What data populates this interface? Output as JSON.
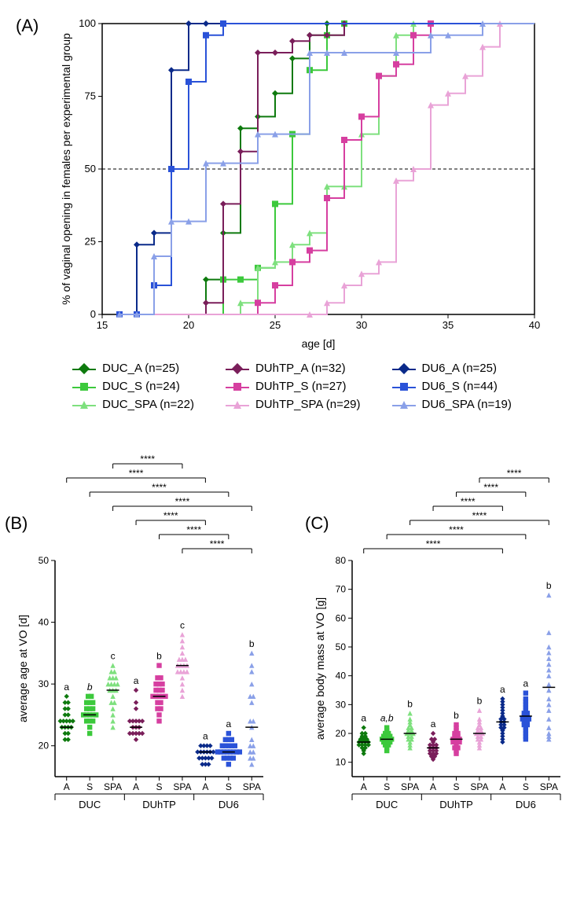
{
  "panelA": {
    "label": "(A)",
    "type": "survival-step-line",
    "xlabel": "age [d]",
    "ylabel": "% of vaginal opening in females per experimental group",
    "xlim": [
      15,
      40
    ],
    "ylim": [
      0,
      100
    ],
    "xtick_step": 5,
    "ytick_step": 25,
    "label_fontsize": 14,
    "tick_fontsize": 13,
    "background_color": "#ffffff",
    "ref_line": {
      "y": 50,
      "dash": "4,3",
      "color": "#000000"
    },
    "series": [
      {
        "key": "DUC_A",
        "label": "DUC_A (n=25)",
        "color": "#0e7a0e",
        "marker": "diamond",
        "x": [
          16,
          21,
          22,
          23,
          24,
          25,
          26,
          27,
          28
        ],
        "y": [
          0,
          12,
          28,
          64,
          68,
          76,
          88,
          96,
          100
        ]
      },
      {
        "key": "DUC_S",
        "label": "DUC_S (n=24)",
        "color": "#3cc93c",
        "marker": "square",
        "x": [
          16,
          22,
          23,
          24,
          25,
          26,
          27,
          28,
          29
        ],
        "y": [
          0,
          12,
          12,
          16,
          38,
          62,
          84,
          96,
          100
        ]
      },
      {
        "key": "DUC_SPA",
        "label": "DUC_SPA (n=22)",
        "color": "#7ee07e",
        "marker": "triangle",
        "x": [
          16,
          23,
          24,
          25,
          26,
          27,
          28,
          29,
          30,
          31,
          32,
          33
        ],
        "y": [
          0,
          4,
          16,
          18,
          24,
          28,
          44,
          44,
          62,
          82,
          96,
          100
        ]
      },
      {
        "key": "DUhTP_A",
        "label": "DUhTP_A (n=32)",
        "color": "#7a1e5a",
        "marker": "diamond",
        "x": [
          16,
          21,
          22,
          23,
          24,
          25,
          26,
          27,
          28,
          29
        ],
        "y": [
          0,
          4,
          38,
          56,
          90,
          90,
          94,
          96,
          96,
          100
        ]
      },
      {
        "key": "DUhTP_S",
        "label": "DUhTP_S (n=27)",
        "color": "#d63fa0",
        "marker": "square",
        "x": [
          16,
          24,
          25,
          26,
          27,
          28,
          29,
          30,
          31,
          32,
          33,
          34
        ],
        "y": [
          0,
          4,
          10,
          18,
          22,
          40,
          60,
          68,
          82,
          86,
          96,
          100
        ]
      },
      {
        "key": "DUhTP_SPA",
        "label": "DUhTP_SPA (n=29)",
        "color": "#e9a3d7",
        "marker": "triangle",
        "x": [
          16,
          27,
          28,
          29,
          30,
          31,
          32,
          33,
          34,
          35,
          36,
          37,
          38
        ],
        "y": [
          0,
          0,
          4,
          10,
          14,
          18,
          46,
          50,
          72,
          76,
          82,
          92,
          100
        ]
      },
      {
        "key": "DU6_A",
        "label": "DU6_A (n=25)",
        "color": "#0a2a8a",
        "marker": "diamond",
        "x": [
          16,
          17,
          18,
          19,
          20,
          21
        ],
        "y": [
          0,
          24,
          28,
          84,
          100,
          100
        ]
      },
      {
        "key": "DU6_S",
        "label": "DU6_S (n=44)",
        "color": "#2a52d8",
        "marker": "square",
        "x": [
          16,
          17,
          18,
          19,
          20,
          21,
          22
        ],
        "y": [
          0,
          0,
          10,
          50,
          80,
          96,
          100
        ]
      },
      {
        "key": "DU6_SPA",
        "label": "DU6_SPA (n=19)",
        "color": "#8aa0e8",
        "marker": "triangle",
        "x": [
          16,
          17,
          18,
          19,
          20,
          21,
          22,
          24,
          25,
          27,
          28,
          29,
          32,
          34,
          35,
          37
        ],
        "y": [
          0,
          0,
          20,
          32,
          32,
          52,
          52,
          62,
          62,
          90,
          90,
          90,
          90,
          96,
          96,
          100
        ]
      }
    ]
  },
  "legend_layout": {
    "columns": 3,
    "rows": 3,
    "order": [
      "DUC_A",
      "DUhTP_A",
      "DU6_A",
      "DUC_S",
      "DUhTP_S",
      "DU6_S",
      "DUC_SPA",
      "DUhTP_SPA",
      "DU6_SPA"
    ]
  },
  "panelB": {
    "label": "(B)",
    "type": "scatter-dot",
    "ylabel": "average age at VO [d]",
    "ylim": [
      15,
      50
    ],
    "ytick_step": 10,
    "label_fontsize": 14,
    "tick_fontsize": 12,
    "groups": [
      "DUC",
      "DUhTP",
      "DU6"
    ],
    "subgroups": [
      "A",
      "S",
      "SPA"
    ],
    "colors": {
      "DUC_A": "#0e7a0e",
      "DUC_S": "#3cc93c",
      "DUC_SPA": "#7ee07e",
      "DUhTP_A": "#7a1e5a",
      "DUhTP_S": "#d63fa0",
      "DUhTP_SPA": "#e9a3d7",
      "DU6_A": "#0a2a8a",
      "DU6_S": "#2a52d8",
      "DU6_SPA": "#8aa0e8"
    },
    "markers": {
      "A": "diamond",
      "S": "square",
      "SPA": "triangle"
    },
    "letters": {
      "DUC_A": "a",
      "DUC_S": "b",
      "DUC_SPA": "c",
      "DUhTP_A": "a",
      "DUhTP_S": "b",
      "DUhTP_SPA": "c",
      "DU6_A": "a",
      "DU6_S": "a",
      "DU6_SPA": "b"
    },
    "means": {
      "DUC_A": 23,
      "DUC_S": 25,
      "DUC_SPA": 29,
      "DUhTP_A": 23,
      "DUhTP_S": 28,
      "DUhTP_SPA": 33,
      "DU6_A": 19,
      "DU6_S": 19,
      "DU6_SPA": 23
    },
    "points": {
      "DUC_A": [
        21,
        21,
        22,
        22,
        23,
        23,
        23,
        23,
        24,
        24,
        24,
        24,
        24,
        25,
        25,
        26,
        26,
        27,
        27,
        28
      ],
      "DUC_S": [
        22,
        23,
        24,
        24,
        24,
        25,
        25,
        25,
        25,
        25,
        26,
        26,
        26,
        27,
        27,
        27,
        28,
        28
      ],
      "DUC_SPA": [
        23,
        24,
        25,
        26,
        27,
        27,
        28,
        29,
        29,
        29,
        30,
        30,
        30,
        30,
        31,
        31,
        31,
        32,
        32,
        33
      ],
      "DUhTP_A": [
        21,
        22,
        22,
        22,
        22,
        22,
        23,
        23,
        23,
        24,
        24,
        24,
        24,
        24,
        26,
        27,
        29
      ],
      "DUhTP_S": [
        24,
        25,
        26,
        26,
        27,
        27,
        28,
        28,
        28,
        28,
        28,
        29,
        29,
        29,
        30,
        30,
        30,
        31,
        31,
        33
      ],
      "DUhTP_SPA": [
        28,
        29,
        30,
        31,
        32,
        32,
        32,
        32,
        33,
        33,
        33,
        33,
        34,
        34,
        34,
        35,
        36,
        37,
        38
      ],
      "DU6_A": [
        17,
        17,
        17,
        18,
        18,
        18,
        18,
        18,
        19,
        19,
        19,
        19,
        19,
        19,
        20,
        20,
        20,
        20
      ],
      "DU6_S": [
        17,
        18,
        18,
        18,
        18,
        19,
        19,
        19,
        19,
        19,
        19,
        19,
        19,
        20,
        20,
        20,
        20,
        20,
        21,
        21,
        21,
        22
      ],
      "DU6_SPA": [
        17,
        18,
        18,
        19,
        19,
        20,
        20,
        21,
        23,
        24,
        24,
        27,
        28,
        28,
        30,
        32,
        33,
        35
      ]
    },
    "sig_bars": [
      {
        "from": "DUC_SPA",
        "to": "DUhTP_SPA",
        "label": "****"
      },
      {
        "from": "DUC_A",
        "to": "DU6_A",
        "label": "****"
      },
      {
        "from": "DUC_S",
        "to": "DU6_S",
        "label": "****"
      },
      {
        "from": "DUC_SPA",
        "to": "DU6_SPA",
        "label": "****"
      },
      {
        "from": "DUhTP_A",
        "to": "DU6_A",
        "label": "****"
      },
      {
        "from": "DUhTP_S",
        "to": "DU6_S",
        "label": "****"
      },
      {
        "from": "DUhTP_SPA",
        "to": "DU6_SPA",
        "label": "****"
      }
    ]
  },
  "panelC": {
    "label": "(C)",
    "type": "scatter-dot",
    "ylabel": "average body mass at VO [g]",
    "ylim": [
      5,
      80
    ],
    "ytick_step": 10,
    "label_fontsize": 14,
    "tick_fontsize": 12,
    "groups": [
      "DUC",
      "DUhTP",
      "DU6"
    ],
    "subgroups": [
      "A",
      "S",
      "SPA"
    ],
    "colors": {
      "DUC_A": "#0e7a0e",
      "DUC_S": "#3cc93c",
      "DUC_SPA": "#7ee07e",
      "DUhTP_A": "#7a1e5a",
      "DUhTP_S": "#d63fa0",
      "DUhTP_SPA": "#e9a3d7",
      "DU6_A": "#0a2a8a",
      "DU6_S": "#2a52d8",
      "DU6_SPA": "#8aa0e8"
    },
    "markers": {
      "A": "diamond",
      "S": "square",
      "SPA": "triangle"
    },
    "letters": {
      "DUC_A": "a",
      "DUC_S": "a,b",
      "DUC_SPA": "b",
      "DUhTP_A": "a",
      "DUhTP_S": "b",
      "DUhTP_SPA": "b",
      "DU6_A": "a",
      "DU6_S": "a",
      "DU6_SPA": "b"
    },
    "means": {
      "DUC_A": 17,
      "DUC_S": 18,
      "DUC_SPA": 20,
      "DUhTP_A": 15,
      "DUhTP_S": 18,
      "DUhTP_SPA": 20,
      "DU6_A": 24,
      "DU6_S": 26,
      "DU6_SPA": 36
    },
    "points": {
      "DUC_A": [
        13,
        14,
        15,
        15,
        16,
        16,
        16,
        16,
        17,
        17,
        17,
        17,
        18,
        18,
        18,
        19,
        19,
        20,
        20,
        22
      ],
      "DUC_S": [
        14,
        15,
        16,
        16,
        17,
        17,
        17,
        18,
        18,
        18,
        18,
        19,
        19,
        19,
        20,
        20,
        21,
        22
      ],
      "DUC_SPA": [
        15,
        16,
        17,
        18,
        18,
        19,
        19,
        20,
        20,
        20,
        21,
        21,
        22,
        22,
        23,
        24,
        25,
        27
      ],
      "DUhTP_A": [
        11,
        12,
        12,
        13,
        13,
        13,
        14,
        14,
        14,
        15,
        15,
        15,
        16,
        16,
        16,
        17,
        18,
        18,
        20
      ],
      "DUhTP_S": [
        13,
        14,
        15,
        15,
        16,
        17,
        17,
        17,
        18,
        18,
        18,
        19,
        19,
        20,
        20,
        21,
        22,
        23
      ],
      "DUhTP_SPA": [
        15,
        16,
        17,
        18,
        18,
        19,
        19,
        20,
        20,
        20,
        21,
        21,
        22,
        22,
        23,
        24,
        25,
        28
      ],
      "DU6_A": [
        17,
        18,
        19,
        20,
        21,
        22,
        22,
        23,
        23,
        24,
        24,
        25,
        25,
        26,
        27,
        28,
        29,
        30,
        31,
        32
      ],
      "DU6_S": [
        18,
        19,
        20,
        21,
        22,
        23,
        23,
        24,
        24,
        25,
        25,
        25,
        26,
        26,
        27,
        27,
        28,
        29,
        30,
        31,
        32,
        34
      ],
      "DU6_SPA": [
        18,
        19,
        20,
        22,
        25,
        28,
        30,
        32,
        35,
        37,
        40,
        42,
        44,
        46,
        48,
        50,
        55,
        68
      ]
    },
    "sig_bars": [
      {
        "from": "DUhTP_SPA",
        "to": "DU6_SPA",
        "label": "****"
      },
      {
        "from": "DUhTP_S",
        "to": "DU6_S",
        "label": "****"
      },
      {
        "from": "DUhTP_A",
        "to": "DU6_A",
        "label": "****"
      },
      {
        "from": "DUC_SPA",
        "to": "DU6_SPA",
        "label": "****"
      },
      {
        "from": "DUC_S",
        "to": "DU6_S",
        "label": "****"
      },
      {
        "from": "DUC_A",
        "to": "DU6_A",
        "label": "****"
      }
    ]
  }
}
